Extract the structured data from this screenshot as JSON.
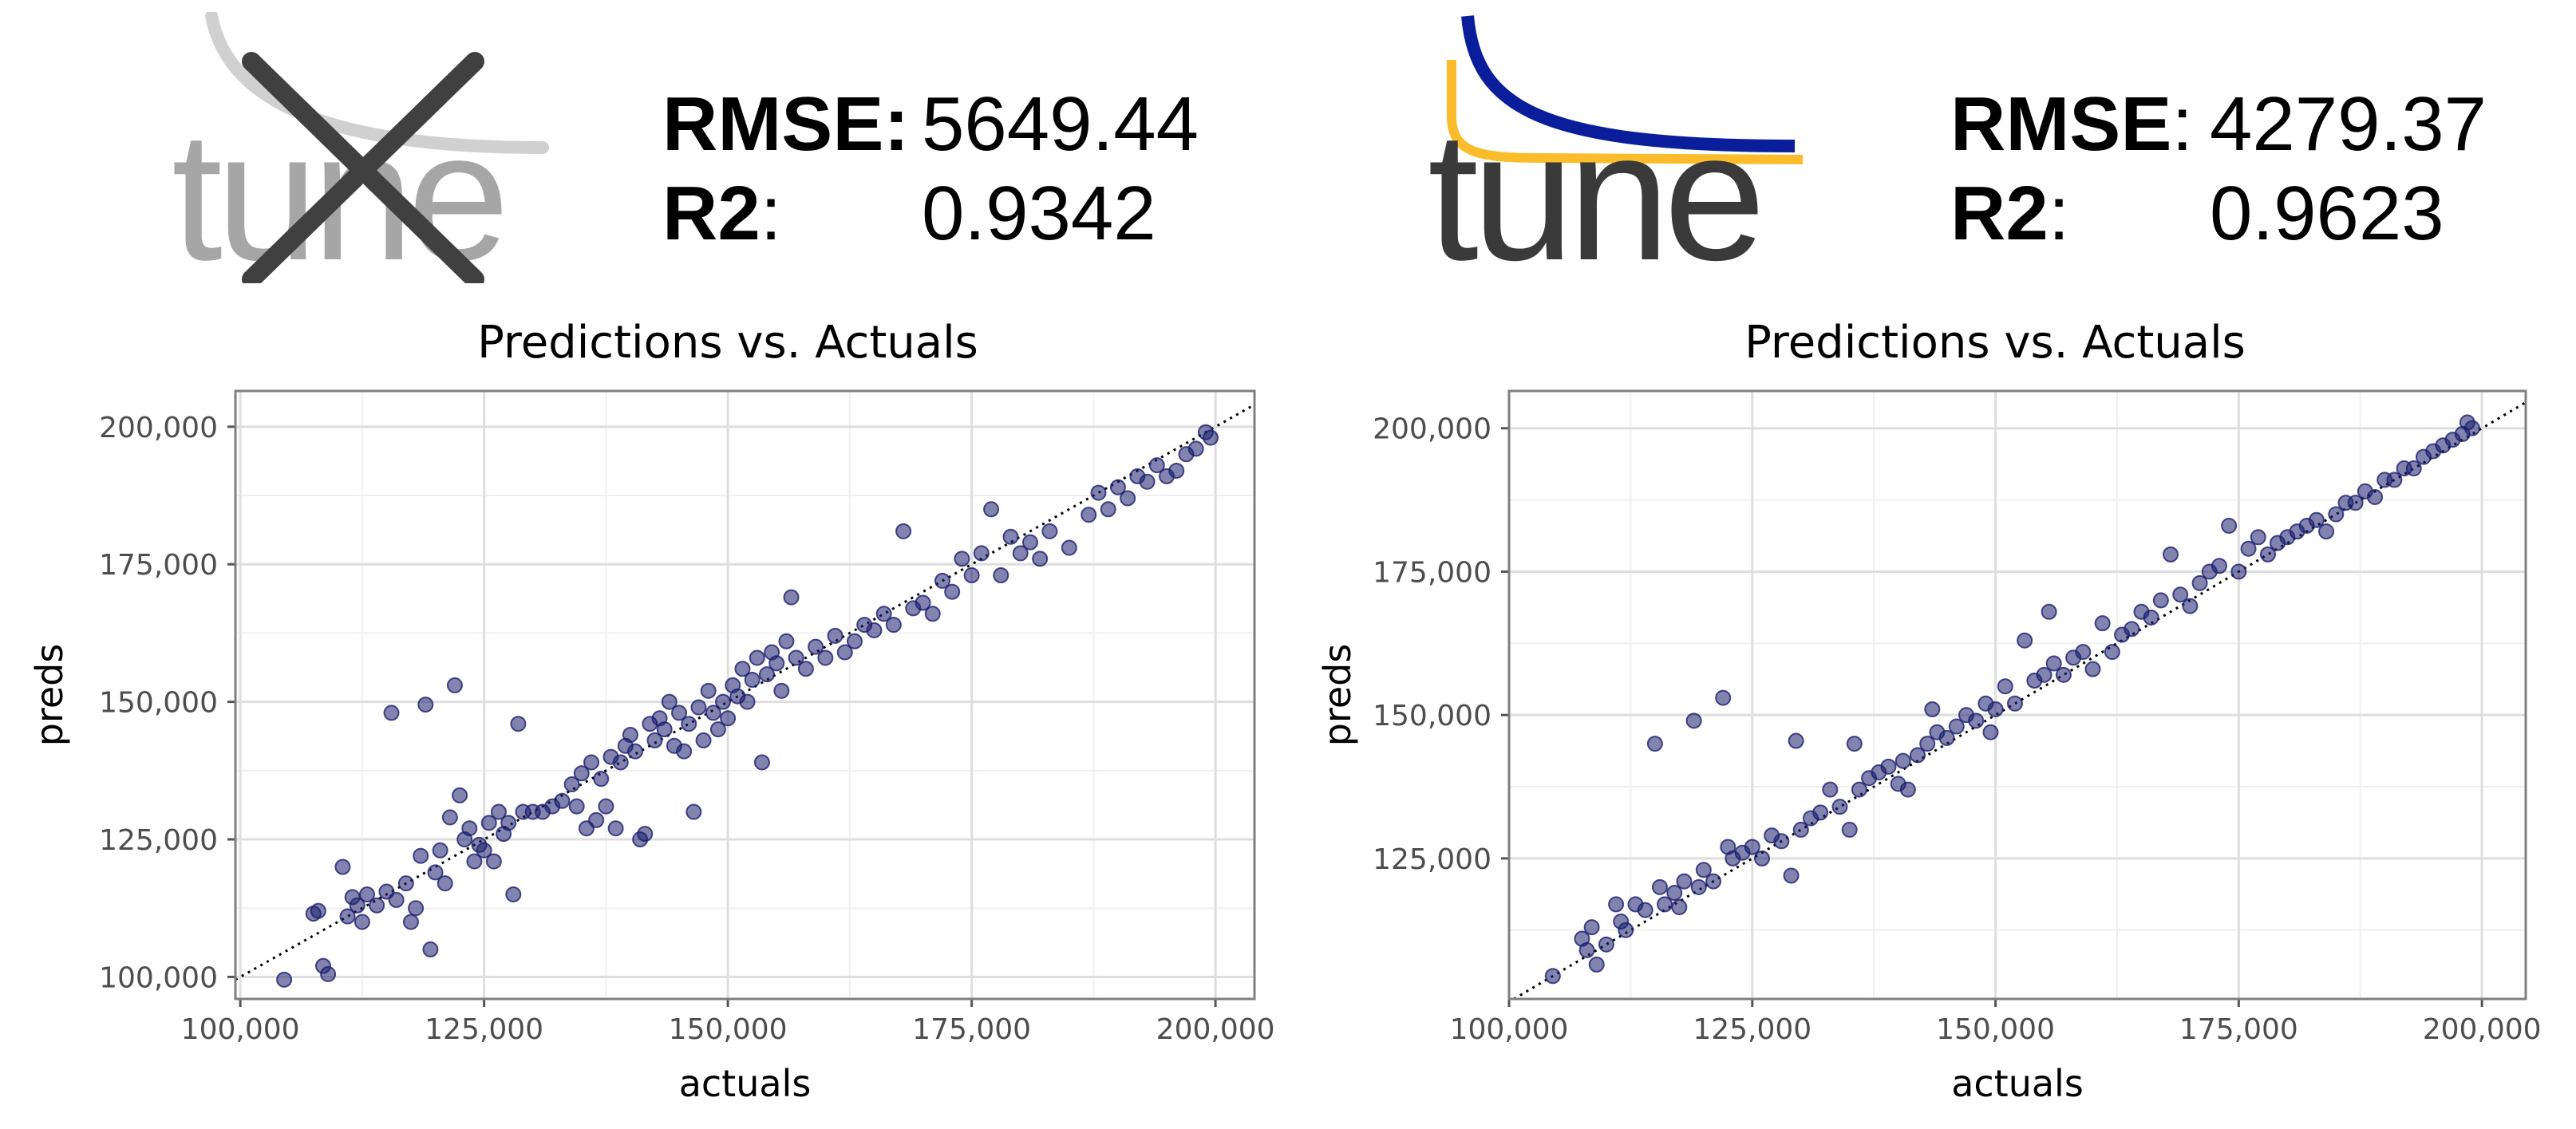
{
  "panels": [
    {
      "logo": {
        "text": "tune",
        "variant": "crossed-out",
        "colors": {
          "text": "#a6a6a6",
          "swoosh": "#d0d0d0",
          "cross": "#404040"
        }
      },
      "metrics": {
        "rmse_label": "RMSE",
        "rmse_sep": ":",
        "rmse_value": "5649.44",
        "r2_label": "R2",
        "r2_sep": ":",
        "r2_value": "0.9342"
      }
    },
    {
      "logo": {
        "text": "tune",
        "variant": "tuned",
        "colors": {
          "text": "#3a3a3a",
          "swoosh_blue": "#0a1e9c",
          "swoosh_yellow": "#fbbc2b"
        }
      },
      "metrics": {
        "rmse_label": "RMSE",
        "rmse_sep": ":",
        "rmse_value": "4279.37",
        "r2_label": "R2",
        "r2_sep": ":",
        "r2_value": "0.9623"
      }
    }
  ],
  "chart_data": [
    {
      "type": "scatter",
      "title": "Predictions vs. Actuals",
      "xlabel": "actuals",
      "ylabel": "preds",
      "xlim": [
        99500,
        204000
      ],
      "ylim": [
        96000,
        206500
      ],
      "xticks": [
        100000,
        125000,
        150000,
        175000,
        200000
      ],
      "xtick_labels": [
        "100,000",
        "125,000",
        "150,000",
        "175,000",
        "200,000"
      ],
      "yticks": [
        100000,
        125000,
        150000,
        175000,
        200000
      ],
      "ytick_labels": [
        "100,000",
        "125,000",
        "150,000",
        "175,000",
        "200,000"
      ],
      "grid": true,
      "reference_line": "y = x (dotted)",
      "point_color": "#1b1f6e",
      "points": [
        [
          104500,
          99500
        ],
        [
          108500,
          102000
        ],
        [
          109000,
          100500
        ],
        [
          107500,
          111500
        ],
        [
          108000,
          112000
        ],
        [
          110500,
          120000
        ],
        [
          111000,
          111000
        ],
        [
          111500,
          114500
        ],
        [
          112000,
          113000
        ],
        [
          112500,
          110000
        ],
        [
          113000,
          115000
        ],
        [
          114000,
          113000
        ],
        [
          115000,
          115500
        ],
        [
          115500,
          148000
        ],
        [
          116000,
          114000
        ],
        [
          117000,
          117000
        ],
        [
          117500,
          110000
        ],
        [
          118000,
          112500
        ],
        [
          118500,
          122000
        ],
        [
          119000,
          149500
        ],
        [
          119500,
          105000
        ],
        [
          120000,
          119000
        ],
        [
          120500,
          123000
        ],
        [
          121000,
          117000
        ],
        [
          121500,
          129000
        ],
        [
          122000,
          153000
        ],
        [
          122500,
          133000
        ],
        [
          123000,
          125000
        ],
        [
          123500,
          127000
        ],
        [
          124000,
          121000
        ],
        [
          124500,
          124000
        ],
        [
          125000,
          123000
        ],
        [
          125500,
          128000
        ],
        [
          126000,
          121000
        ],
        [
          126500,
          130000
        ],
        [
          127000,
          126000
        ],
        [
          127500,
          128000
        ],
        [
          128000,
          115000
        ],
        [
          128500,
          146000
        ],
        [
          129000,
          130000
        ],
        [
          130000,
          130000
        ],
        [
          131000,
          130000
        ],
        [
          132000,
          131000
        ],
        [
          133000,
          132000
        ],
        [
          134000,
          135000
        ],
        [
          134500,
          131000
        ],
        [
          135000,
          137000
        ],
        [
          135500,
          127000
        ],
        [
          136000,
          139000
        ],
        [
          136500,
          128500
        ],
        [
          137000,
          136000
        ],
        [
          137500,
          131000
        ],
        [
          138000,
          140000
        ],
        [
          138500,
          127000
        ],
        [
          139000,
          139000
        ],
        [
          139500,
          142000
        ],
        [
          140000,
          144000
        ],
        [
          140500,
          141000
        ],
        [
          141000,
          125000
        ],
        [
          141500,
          126000
        ],
        [
          142000,
          146000
        ],
        [
          142500,
          143000
        ],
        [
          143000,
          147000
        ],
        [
          143500,
          145000
        ],
        [
          144000,
          150000
        ],
        [
          144500,
          142000
        ],
        [
          145000,
          148000
        ],
        [
          145500,
          141000
        ],
        [
          146000,
          146000
        ],
        [
          146500,
          130000
        ],
        [
          147000,
          149000
        ],
        [
          147500,
          143000
        ],
        [
          148000,
          152000
        ],
        [
          148500,
          148000
        ],
        [
          149000,
          145000
        ],
        [
          149500,
          150000
        ],
        [
          150000,
          147000
        ],
        [
          150500,
          153000
        ],
        [
          151000,
          151000
        ],
        [
          151500,
          156000
        ],
        [
          152000,
          150000
        ],
        [
          152500,
          154000
        ],
        [
          153000,
          158000
        ],
        [
          153500,
          139000
        ],
        [
          154000,
          155000
        ],
        [
          154500,
          159000
        ],
        [
          155000,
          157000
        ],
        [
          155500,
          152000
        ],
        [
          156000,
          161000
        ],
        [
          156500,
          169000
        ],
        [
          157000,
          158000
        ],
        [
          158000,
          156000
        ],
        [
          159000,
          160000
        ],
        [
          160000,
          158000
        ],
        [
          161000,
          162000
        ],
        [
          162000,
          159000
        ],
        [
          163000,
          161000
        ],
        [
          164000,
          164000
        ],
        [
          165000,
          163000
        ],
        [
          166000,
          166000
        ],
        [
          167000,
          164000
        ],
        [
          168000,
          181000
        ],
        [
          169000,
          167000
        ],
        [
          170000,
          168000
        ],
        [
          171000,
          166000
        ],
        [
          172000,
          172000
        ],
        [
          173000,
          170000
        ],
        [
          174000,
          176000
        ],
        [
          175000,
          173000
        ],
        [
          176000,
          177000
        ],
        [
          177000,
          185000
        ],
        [
          178000,
          173000
        ],
        [
          179000,
          180000
        ],
        [
          180000,
          177000
        ],
        [
          181000,
          179000
        ],
        [
          182000,
          176000
        ],
        [
          183000,
          181000
        ],
        [
          185000,
          178000
        ],
        [
          187000,
          184000
        ],
        [
          188000,
          188000
        ],
        [
          189000,
          185000
        ],
        [
          190000,
          189000
        ],
        [
          191000,
          187000
        ],
        [
          192000,
          191000
        ],
        [
          193000,
          190000
        ],
        [
          194000,
          193000
        ],
        [
          195000,
          191000
        ],
        [
          196000,
          192000
        ],
        [
          197000,
          195000
        ],
        [
          198000,
          196000
        ],
        [
          199000,
          199000
        ],
        [
          199500,
          198000
        ]
      ]
    },
    {
      "type": "scatter",
      "title": "Predictions vs. Actuals",
      "xlabel": "actuals",
      "ylabel": "preds",
      "xlim": [
        100000,
        204500
      ],
      "ylim": [
        100500,
        206500
      ],
      "xticks": [
        100000,
        125000,
        150000,
        175000,
        200000
      ],
      "xtick_labels": [
        "100,000",
        "125,000",
        "150,000",
        "175,000",
        "200,000"
      ],
      "yticks": [
        125000,
        150000,
        175000,
        200000
      ],
      "ytick_labels": [
        "125,000",
        "150,000",
        "175,000",
        "200,000"
      ],
      "grid": true,
      "reference_line": "y = x (dotted)",
      "point_color": "#1b1f6e",
      "points": [
        [
          104500,
          104500
        ],
        [
          107500,
          111000
        ],
        [
          108000,
          109000
        ],
        [
          108500,
          113000
        ],
        [
          109000,
          106500
        ],
        [
          110000,
          110000
        ],
        [
          111000,
          117000
        ],
        [
          111500,
          114000
        ],
        [
          112000,
          112500
        ],
        [
          113000,
          117000
        ],
        [
          114000,
          116000
        ],
        [
          115000,
          145000
        ],
        [
          115500,
          120000
        ],
        [
          116000,
          117000
        ],
        [
          117000,
          119000
        ],
        [
          117500,
          116500
        ],
        [
          118000,
          121000
        ],
        [
          119000,
          149000
        ],
        [
          119500,
          120000
        ],
        [
          120000,
          123000
        ],
        [
          121000,
          121000
        ],
        [
          122000,
          153000
        ],
        [
          122500,
          127000
        ],
        [
          123000,
          125000
        ],
        [
          124000,
          126000
        ],
        [
          125000,
          127000
        ],
        [
          126000,
          125000
        ],
        [
          127000,
          129000
        ],
        [
          128000,
          128000
        ],
        [
          129000,
          122000
        ],
        [
          129500,
          145500
        ],
        [
          130000,
          130000
        ],
        [
          131000,
          132000
        ],
        [
          132000,
          133000
        ],
        [
          133000,
          137000
        ],
        [
          134000,
          134000
        ],
        [
          135000,
          130000
        ],
        [
          135500,
          145000
        ],
        [
          136000,
          137000
        ],
        [
          137000,
          139000
        ],
        [
          138000,
          140000
        ],
        [
          139000,
          141000
        ],
        [
          140000,
          138000
        ],
        [
          140500,
          142000
        ],
        [
          141000,
          137000
        ],
        [
          142000,
          143000
        ],
        [
          143000,
          145000
        ],
        [
          143500,
          151000
        ],
        [
          144000,
          147000
        ],
        [
          145000,
          146000
        ],
        [
          146000,
          148000
        ],
        [
          147000,
          150000
        ],
        [
          148000,
          149000
        ],
        [
          149000,
          152000
        ],
        [
          149500,
          147000
        ],
        [
          150000,
          151000
        ],
        [
          151000,
          155000
        ],
        [
          152000,
          152000
        ],
        [
          153000,
          163000
        ],
        [
          154000,
          156000
        ],
        [
          155000,
          157000
        ],
        [
          155500,
          168000
        ],
        [
          156000,
          159000
        ],
        [
          157000,
          157000
        ],
        [
          158000,
          160000
        ],
        [
          159000,
          161000
        ],
        [
          160000,
          158000
        ],
        [
          161000,
          166000
        ],
        [
          162000,
          161000
        ],
        [
          163000,
          164000
        ],
        [
          164000,
          165000
        ],
        [
          165000,
          168000
        ],
        [
          166000,
          167000
        ],
        [
          167000,
          170000
        ],
        [
          168000,
          178000
        ],
        [
          169000,
          171000
        ],
        [
          170000,
          169000
        ],
        [
          171000,
          173000
        ],
        [
          172000,
          175000
        ],
        [
          173000,
          176000
        ],
        [
          174000,
          183000
        ],
        [
          175000,
          175000
        ],
        [
          176000,
          179000
        ],
        [
          177000,
          181000
        ],
        [
          178000,
          178000
        ],
        [
          179000,
          180000
        ],
        [
          180000,
          181000
        ],
        [
          181000,
          182000
        ],
        [
          182000,
          183000
        ],
        [
          183000,
          184000
        ],
        [
          184000,
          182000
        ],
        [
          185000,
          185000
        ],
        [
          186000,
          187000
        ],
        [
          187000,
          187000
        ],
        [
          188000,
          189000
        ],
        [
          189000,
          188000
        ],
        [
          190000,
          191000
        ],
        [
          191000,
          191000
        ],
        [
          192000,
          193000
        ],
        [
          193000,
          193000
        ],
        [
          194000,
          195000
        ],
        [
          195000,
          196000
        ],
        [
          196000,
          197000
        ],
        [
          197000,
          198000
        ],
        [
          198000,
          199000
        ],
        [
          198500,
          201000
        ],
        [
          199000,
          200000
        ]
      ]
    }
  ]
}
